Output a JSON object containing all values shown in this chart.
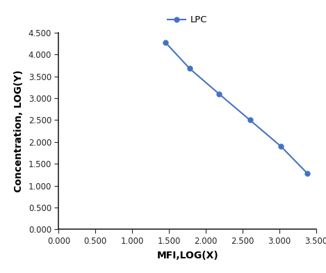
{
  "x": [
    1.45,
    1.78,
    2.18,
    2.6,
    3.02,
    3.38
  ],
  "y": [
    4.28,
    3.68,
    3.1,
    2.5,
    1.9,
    1.28
  ],
  "line_color": "#4472C4",
  "marker": "o",
  "marker_size": 5,
  "line_width": 1.5,
  "legend_label": "LPC",
  "xlabel": "MFI,LOG(X)",
  "ylabel": "Concentration, LOG(Y)",
  "xlim": [
    0.0,
    3.5
  ],
  "ylim": [
    0.0,
    4.5
  ],
  "xticks": [
    0.0,
    0.5,
    1.0,
    1.5,
    2.0,
    2.5,
    3.0,
    3.5
  ],
  "yticks": [
    0.0,
    0.5,
    1.0,
    1.5,
    2.0,
    2.5,
    3.0,
    3.5,
    4.0,
    4.5
  ],
  "background_color": "#ffffff",
  "tick_label_fontsize": 8.5,
  "axis_label_fontsize": 10,
  "legend_fontsize": 9.5,
  "spine_color": "#222222",
  "tick_color": "#222222"
}
